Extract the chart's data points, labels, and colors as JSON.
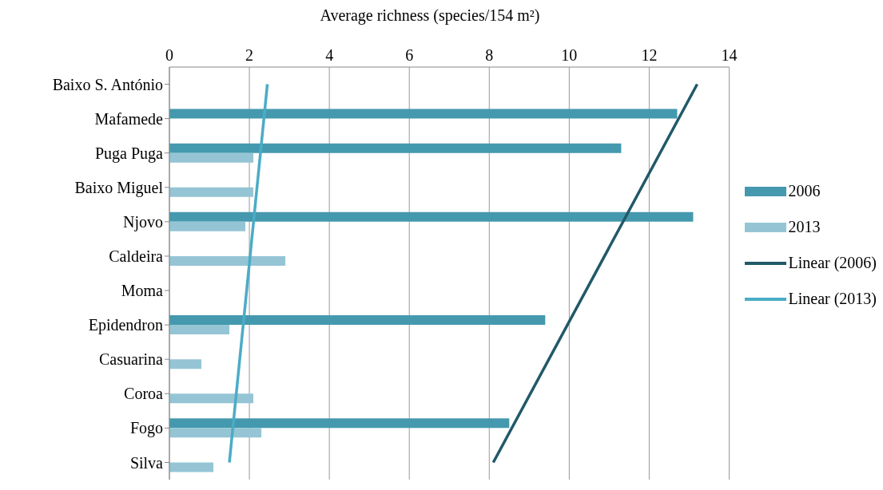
{
  "chart_data": {
    "type": "bar",
    "orientation": "horizontal",
    "xlabel": "Average richness (species/154 m²)",
    "categories": [
      "Baixo S. António",
      "Mafamede",
      "Puga Puga",
      "Baixo Miguel",
      "Njovo",
      "Caldeira",
      "Moma",
      "Epidendron",
      "Casuarina",
      "Coroa",
      "Fogo",
      "Silva"
    ],
    "series": [
      {
        "name": "2006",
        "color": "#4599ae",
        "values": [
          null,
          12.7,
          11.3,
          null,
          13.1,
          null,
          null,
          9.4,
          null,
          null,
          8.5,
          null
        ]
      },
      {
        "name": "2013",
        "color": "#95c5d5",
        "values": [
          null,
          null,
          2.1,
          2.1,
          1.9,
          2.9,
          null,
          1.5,
          0.8,
          2.1,
          2.3,
          1.1
        ]
      },
      {
        "name": "Linear (2006)",
        "type": "line",
        "color": "#215968",
        "values": [
          13.2,
          null,
          null,
          null,
          null,
          null,
          null,
          null,
          null,
          null,
          null,
          8.1
        ]
      },
      {
        "name": "Linear (2013)",
        "type": "line",
        "color": "#4bacc6",
        "values": [
          2.45,
          null,
          null,
          null,
          null,
          null,
          null,
          null,
          null,
          null,
          null,
          1.5
        ]
      }
    ],
    "xlim": [
      0,
      14
    ],
    "xticks": [
      0,
      2,
      4,
      6,
      8,
      10,
      12,
      14
    ],
    "grid": "x",
    "legend": "right",
    "marker": "none",
    "line_style": "solid"
  }
}
